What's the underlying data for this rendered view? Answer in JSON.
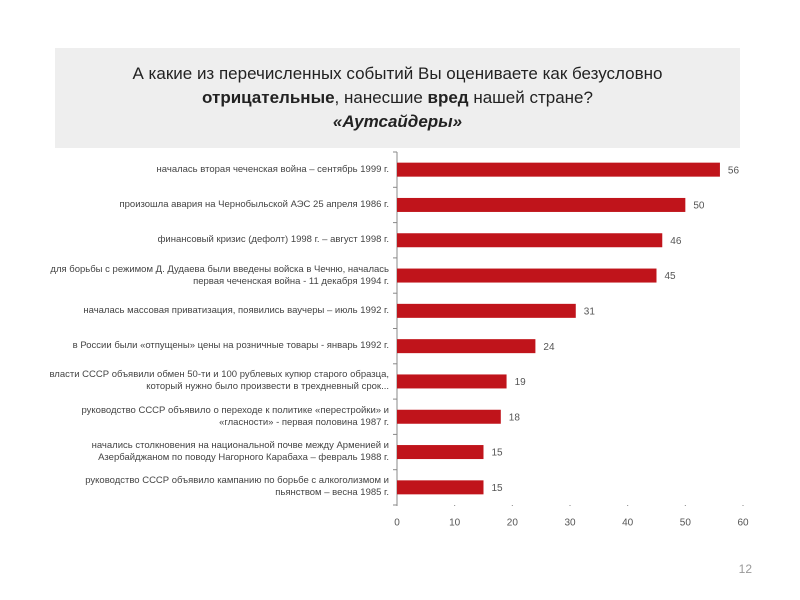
{
  "chart_data": {
    "type": "bar",
    "orientation": "horizontal",
    "title": [
      "А какие из перечисленных событий Вы оцениваете как безусловно",
      "отрицательные",
      ", нанесшие ",
      "вред",
      " нашей стране?",
      "«Аутсайдеры»"
    ],
    "categories": [
      "началась вторая чеченская война – сентябрь 1999 г.",
      "произошла авария на Чернобыльской АЭС 25 апреля 1986 г.",
      "финансовый кризис (дефолт) 1998 г. – август 1998 г.",
      "для борьбы с режимом Д. Дудаева были введены войска в Чечню, началась первая чеченская война - 11 декабря 1994 г.",
      "началась массовая приватизация, появились ваучеры – июль 1992 г.",
      "в России были «отпущены» цены на розничные товары - январь 1992 г.",
      "власти СССР объявили обмен 50-ти и 100 рублевых купюр старого образца, который нужно было произвести в трехдневный срок...",
      "руководство СССР объявило о переходе к политике «перестройки» и «гласности» - первая половина 1987 г.",
      "начались столкновения на национальной почве между Арменией и Азербайджаном по поводу Нагорного Карабаха – февраль 1988 г.",
      "руководство СССР объявило кампанию по борьбе с алкоголизмом и пьянством – весна 1985 г."
    ],
    "values": [
      56,
      50,
      46,
      45,
      31,
      24,
      19,
      18,
      15,
      15
    ],
    "color": "#c0141b",
    "xlim": [
      0,
      60
    ],
    "xticks": [
      0,
      10,
      20,
      30,
      40,
      50,
      60
    ],
    "grid": false
  },
  "page_number": "12"
}
